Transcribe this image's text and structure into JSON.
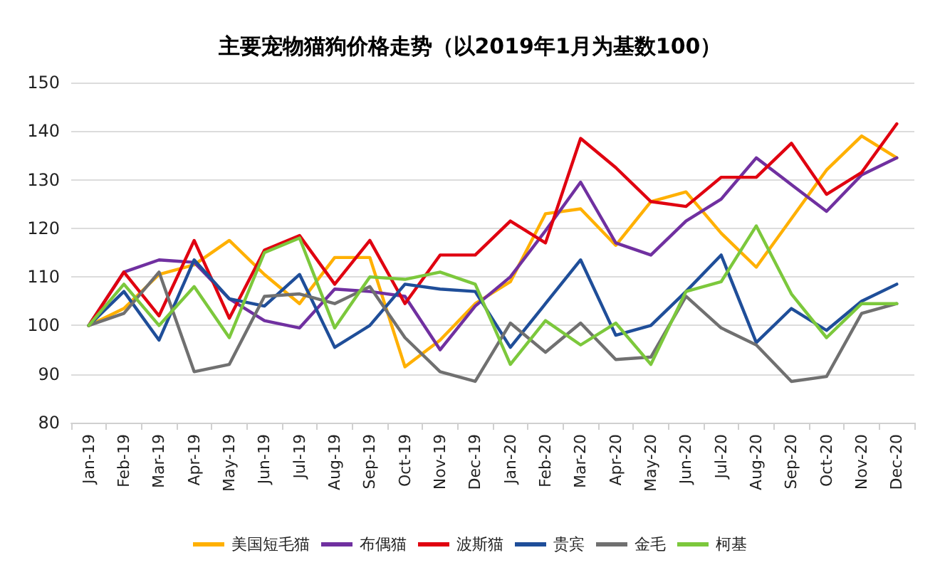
{
  "chart_data": {
    "type": "line",
    "title": "主要宠物猫狗价格走势（以2019年1月为基数100）",
    "categories": [
      "Jan-19",
      "Feb-19",
      "Mar-19",
      "Apr-19",
      "May-19",
      "Jun-19",
      "Jul-19",
      "Aug-19",
      "Sep-19",
      "Oct-19",
      "Nov-19",
      "Dec-19",
      "Jan-20",
      "Feb-20",
      "Mar-20",
      "Apr-20",
      "May-20",
      "Jun-20",
      "Jul-20",
      "Aug-20",
      "Sep-20",
      "Oct-20",
      "Nov-20",
      "Dec-20"
    ],
    "series": [
      {
        "name": "美国短毛猫",
        "color": "#ffb000",
        "values": [
          100,
          103.5,
          110.5,
          112.5,
          117.5,
          110.5,
          104.5,
          114,
          114,
          91.5,
          97,
          104.5,
          109,
          123,
          124,
          116.5,
          125.5,
          127.5,
          119,
          112,
          122,
          132,
          139,
          134.5
        ]
      },
      {
        "name": "布偶猫",
        "color": "#7030a0",
        "values": [
          100,
          111,
          113.5,
          113,
          105.5,
          101,
          99.5,
          107.5,
          107,
          106,
          95,
          104,
          110,
          119.5,
          129.5,
          117,
          114.5,
          121.5,
          126,
          134.5,
          129,
          123.5,
          131,
          134.5
        ]
      },
      {
        "name": "波斯猫",
        "color": "#e00010",
        "values": [
          100,
          111,
          102,
          117.5,
          101.5,
          115.5,
          118.5,
          108.5,
          117.5,
          104.5,
          114.5,
          114.5,
          121.5,
          117,
          138.5,
          132.5,
          125.5,
          124.5,
          130.5,
          130.5,
          137.5,
          127,
          131.5,
          141.5
        ]
      },
      {
        "name": "贵宾",
        "color": "#1f4e99",
        "values": [
          100,
          107,
          97,
          113.5,
          105.5,
          104,
          110.5,
          95.5,
          100,
          108.5,
          107.5,
          107,
          95.5,
          104.5,
          113.5,
          98,
          100,
          107,
          114.5,
          96.5,
          103.5,
          99,
          105,
          108.5
        ]
      },
      {
        "name": "金毛",
        "color": "#707070",
        "values": [
          100,
          102.5,
          111,
          90.5,
          92,
          106,
          106.5,
          104.5,
          108,
          97.5,
          90.5,
          88.5,
          100.5,
          94.5,
          100.5,
          93,
          93.5,
          106,
          99.5,
          96,
          88.5,
          89.5,
          102.5,
          104.5
        ]
      },
      {
        "name": "柯基",
        "color": "#7cc83c",
        "values": [
          100,
          108.5,
          100,
          108,
          97.5,
          115,
          118,
          99.5,
          110,
          109.5,
          111,
          108.5,
          92,
          101,
          96,
          100.5,
          92,
          107,
          109,
          120.5,
          106.5,
          97.5,
          104.5,
          104.5
        ]
      }
    ],
    "ylim": [
      80,
      150
    ],
    "yticks": [
      80,
      90,
      100,
      110,
      120,
      130,
      140,
      150
    ],
    "grid": "y",
    "legend": "bottom",
    "marker": "none",
    "line_style": "solid"
  }
}
